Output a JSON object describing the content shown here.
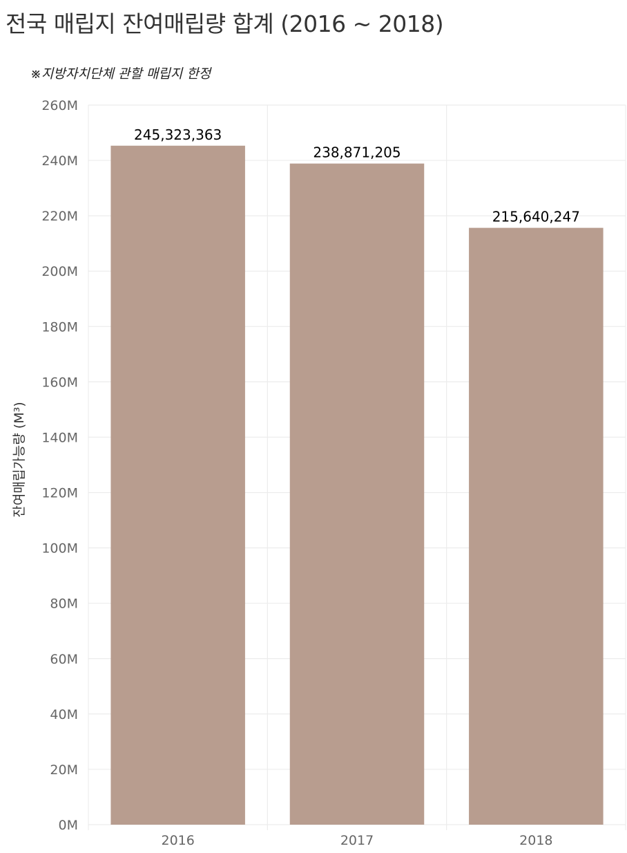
{
  "chart_data": {
    "type": "bar",
    "title": "전국 매립지 잔여매립량 합계 (2016 ~ 2018)",
    "subtitle": "※지방자치단체 관할 매립지 한정",
    "xlabel": "",
    "ylabel": "잔여매립가능량 (M³)",
    "categories": [
      "2016",
      "2017",
      "2018"
    ],
    "values": [
      245323363,
      238871205,
      215640247
    ],
    "data_labels": [
      "245,323,363",
      "238,871,205",
      "215,640,247"
    ],
    "ylim": [
      0,
      260000000
    ],
    "yticks": [
      {
        "value": 0,
        "label": "0M"
      },
      {
        "value": 20000000,
        "label": "20M"
      },
      {
        "value": 40000000,
        "label": "40M"
      },
      {
        "value": 60000000,
        "label": "60M"
      },
      {
        "value": 80000000,
        "label": "80M"
      },
      {
        "value": 100000000,
        "label": "100M"
      },
      {
        "value": 120000000,
        "label": "120M"
      },
      {
        "value": 140000000,
        "label": "140M"
      },
      {
        "value": 160000000,
        "label": "160M"
      },
      {
        "value": 180000000,
        "label": "180M"
      },
      {
        "value": 200000000,
        "label": "200M"
      },
      {
        "value": 220000000,
        "label": "220M"
      },
      {
        "value": 240000000,
        "label": "240M"
      },
      {
        "value": 260000000,
        "label": "260M"
      }
    ],
    "grid": true,
    "legend": "none",
    "colors": {
      "bar": "#b89d8f",
      "grid": "#ececec",
      "tick_text": "#666666"
    }
  }
}
